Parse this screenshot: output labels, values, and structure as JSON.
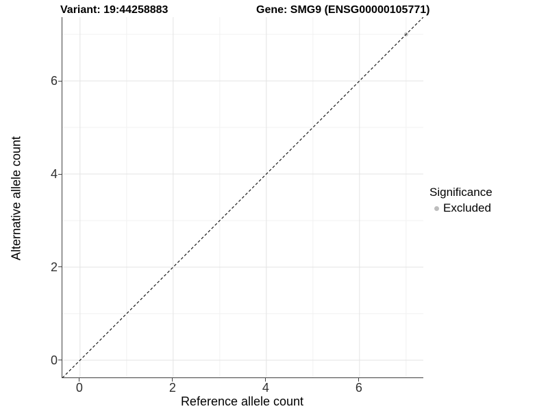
{
  "titles": {
    "variant": "Variant: 19:44258883",
    "gene": "Gene: SMG9 (ENSG00000105771)"
  },
  "chart_data": {
    "type": "scatter",
    "xlabel": "Reference allele count",
    "ylabel": "Alternative allele count",
    "xlim": [
      -0.38,
      7.37
    ],
    "ylim": [
      -0.37,
      7.37
    ],
    "x_major_ticks": [
      0,
      2,
      4,
      6
    ],
    "y_major_ticks": [
      0,
      2,
      4,
      6
    ],
    "x_minor_gridlines": [
      1,
      3,
      5,
      7
    ],
    "y_minor_gridlines": [
      1,
      3,
      5,
      7
    ],
    "grid": true,
    "identity_line": {
      "slope": 1,
      "intercept": 0,
      "style": "dashed"
    },
    "series": [
      {
        "name": "Excluded",
        "color": "#c3c3c3",
        "points": [
          {
            "x": 7,
            "y": 7
          }
        ]
      }
    ],
    "legend": {
      "title": "Significance",
      "position": "right",
      "items": [
        {
          "label": "Excluded",
          "color": "#bdbdbd"
        }
      ]
    }
  },
  "colors": {
    "grid_major": "#e3e3e3",
    "grid_minor": "#f1f1f1",
    "axis_line": "#3f3f3f",
    "tick_text": "#303030",
    "dashed_line": "#1a1a1a"
  }
}
